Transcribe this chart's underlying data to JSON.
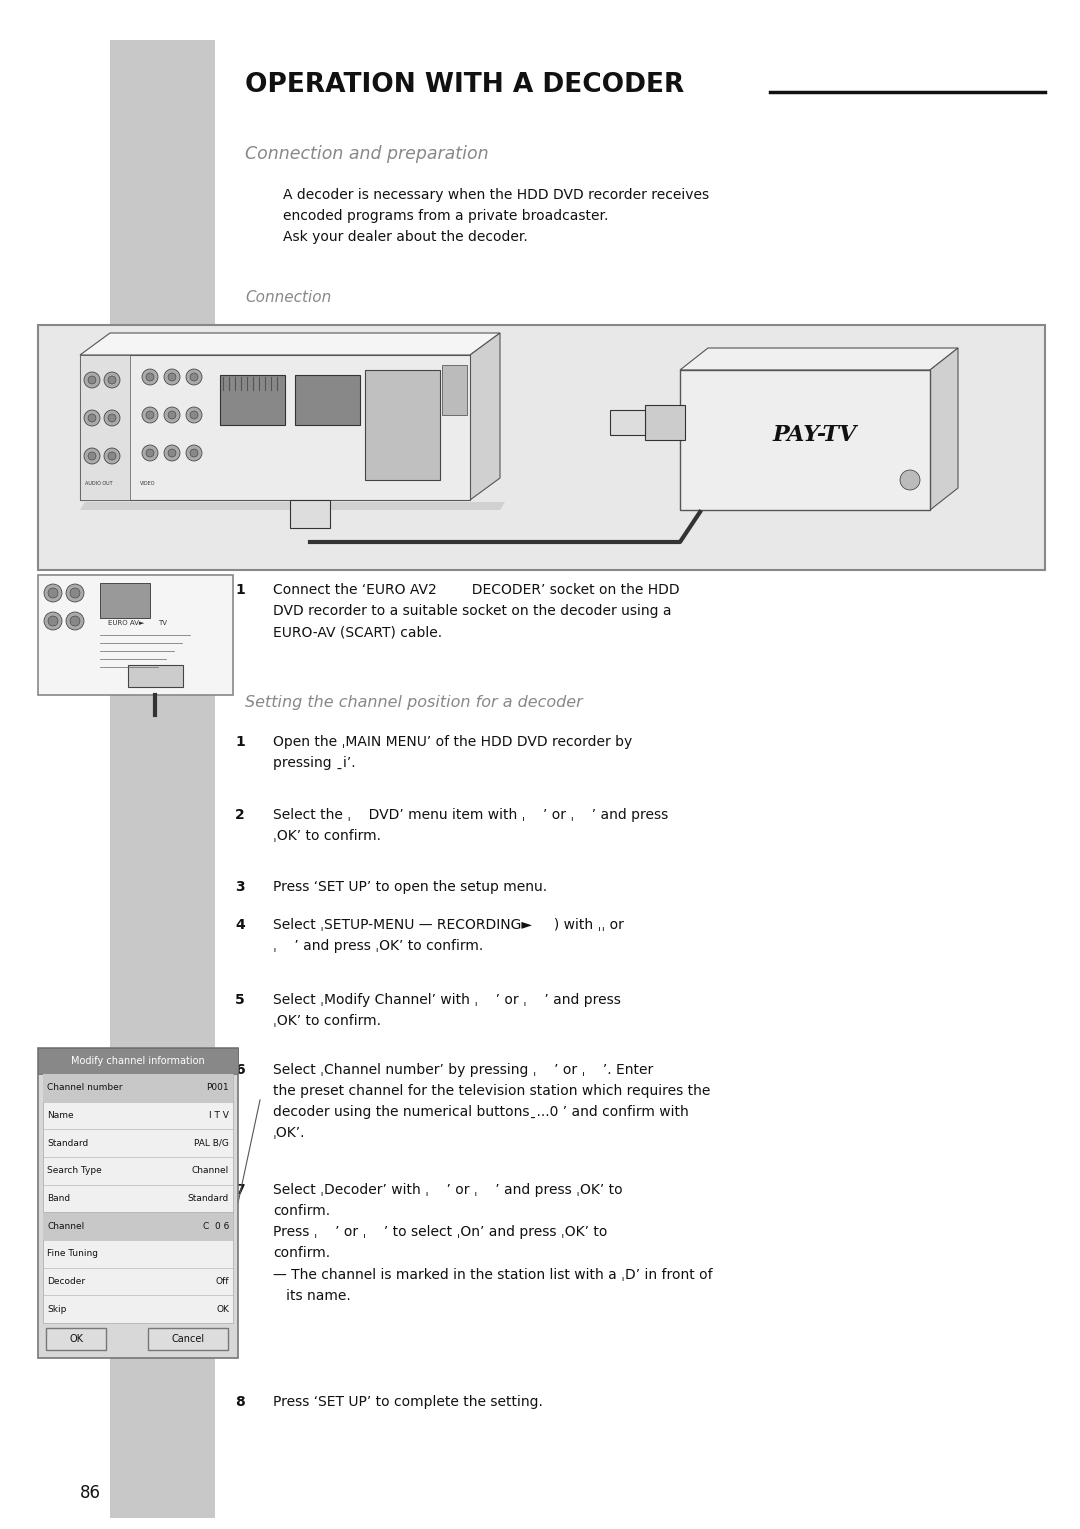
{
  "page_bg": "#ffffff",
  "sidebar_color": "#c8c8c8",
  "title": "OPERATION WITH A DECODER",
  "title_fontsize": 19,
  "title_color": "#111111",
  "section1_title": "Connection and preparation",
  "section1_color": "#888888",
  "section1_fontsize": 12.5,
  "body_text_1": "A decoder is necessary when the HDD DVD recorder receives\nencoded programs from a private broadcaster.\nAsk your dealer about the decoder.",
  "body_fontsize": 10,
  "connection_label": "Connection",
  "connection_label_color": "#888888",
  "connection_label_fontsize": 11,
  "diagram_bg": "#e0e0e0",
  "step1_text": "Connect the ‘EURO AV2        DECODER’ socket on the HDD\nDVD recorder to a suitable socket on the decoder using a\nEURO-AV (SCART) cable.",
  "setting_title": "Setting the channel position for a decoder",
  "setting_title_color": "#888888",
  "setting_title_fontsize": 11.5,
  "step_fontsize": 10,
  "page_number": "86",
  "table_header": "Modify channel information",
  "table_rows": [
    [
      "Channel number",
      "P001",
      true
    ],
    [
      "Name",
      "I T V",
      false
    ],
    [
      "Standard",
      "PAL B/G",
      false
    ],
    [
      "Search Type",
      "Channel",
      false
    ],
    [
      "Band",
      "Standard",
      false
    ],
    [
      "Channel",
      "C  0 6",
      true
    ],
    [
      "Fine Tuning",
      "",
      false
    ],
    [
      "Decoder",
      "Off",
      false
    ],
    [
      "Skip",
      "OK",
      false
    ]
  ]
}
